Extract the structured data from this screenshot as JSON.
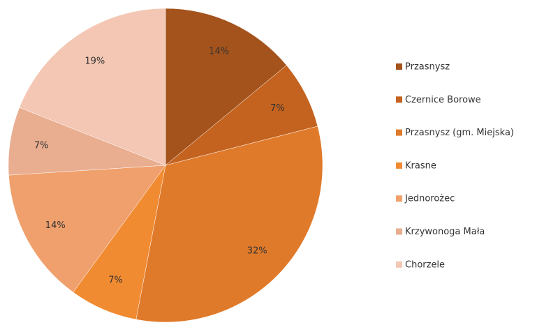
{
  "chart_data": {
    "type": "pie",
    "categories": [
      "Przasnysz",
      "Czernice Borowe",
      "Przasnysz (gm. Miejska)",
      "Krasne",
      "Jednorożec",
      "Krzywonoga Mała",
      "Chorzele"
    ],
    "values": [
      14,
      7,
      32,
      7,
      14,
      7,
      19
    ],
    "value_labels": [
      "14%",
      "7%",
      "32%",
      "7%",
      "14%",
      "7%",
      "19%"
    ],
    "colors": [
      "#a4531c",
      "#c4631f",
      "#e07a2b",
      "#f18b32",
      "#f0a06c",
      "#e9ad90",
      "#f3c7b3"
    ],
    "legend": "right"
  }
}
